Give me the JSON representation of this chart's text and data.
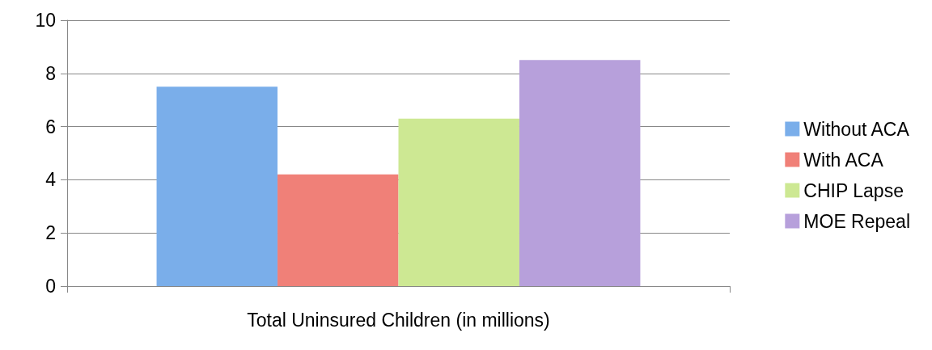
{
  "chart_data": {
    "type": "bar",
    "categories": [
      "Total Uninsured Children (in millions)"
    ],
    "series": [
      {
        "name": "Without ACA",
        "color": "#7aaeea",
        "values": [
          7.5
        ]
      },
      {
        "name": "With ACA",
        "color": "#f08078",
        "values": [
          4.2
        ]
      },
      {
        "name": "CHIP Lapse",
        "color": "#cde893",
        "values": [
          6.3
        ]
      },
      {
        "name": "MOE Repeal",
        "color": "#b7a0db",
        "values": [
          8.5
        ]
      }
    ],
    "ylim": [
      0,
      10
    ],
    "yticks": [
      0,
      2,
      4,
      6,
      8,
      10
    ],
    "grid": "y",
    "legend": "right"
  }
}
